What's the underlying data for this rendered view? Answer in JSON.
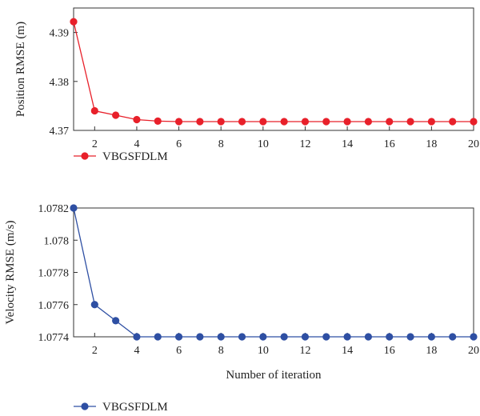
{
  "chart_data": [
    {
      "type": "line",
      "ylabel": "Position RMSE (m)",
      "xlabel": "",
      "xlim": [
        1,
        20
      ],
      "ylim": [
        4.37,
        4.395
      ],
      "xticks": [
        "2",
        "4",
        "6",
        "8",
        "10",
        "12",
        "14",
        "16",
        "18",
        "20"
      ],
      "yticks": [
        "4.37",
        "4.38",
        "4.39"
      ],
      "color": "#e8202a",
      "x": [
        1,
        2,
        3,
        4,
        5,
        6,
        7,
        8,
        9,
        10,
        11,
        12,
        13,
        14,
        15,
        16,
        17,
        18,
        19,
        20
      ],
      "series": [
        {
          "name": "VBGSFDLM",
          "values": [
            4.3922,
            4.374,
            4.3731,
            4.3722,
            4.3719,
            4.3718,
            4.3718,
            4.3718,
            4.3718,
            4.3718,
            4.3718,
            4.3718,
            4.3718,
            4.3718,
            4.3718,
            4.3718,
            4.3718,
            4.3718,
            4.3718,
            4.3718
          ]
        }
      ],
      "legend": "bottom-left"
    },
    {
      "type": "line",
      "ylabel": "Velocity RMSE (m/s)",
      "xlabel": "Number of iteration",
      "xlim": [
        1,
        20
      ],
      "ylim": [
        1.0774,
        1.0782
      ],
      "xticks": [
        "2",
        "4",
        "6",
        "8",
        "10",
        "12",
        "14",
        "16",
        "18",
        "20"
      ],
      "yticks": [
        "1.0774",
        "1.0776",
        "1.0778",
        "1.078",
        "1.0782"
      ],
      "color": "#2e4fa3",
      "x": [
        1,
        2,
        3,
        4,
        5,
        6,
        7,
        8,
        9,
        10,
        11,
        12,
        13,
        14,
        15,
        16,
        17,
        18,
        19,
        20
      ],
      "series": [
        {
          "name": "VBGSFDLM",
          "values": [
            1.0782,
            1.0776,
            1.0775,
            1.0774,
            1.0774,
            1.0774,
            1.0774,
            1.0774,
            1.0774,
            1.0774,
            1.0774,
            1.0774,
            1.0774,
            1.0774,
            1.0774,
            1.0774,
            1.0774,
            1.0774,
            1.0774,
            1.0774
          ]
        }
      ],
      "legend": "bottom-left"
    }
  ]
}
